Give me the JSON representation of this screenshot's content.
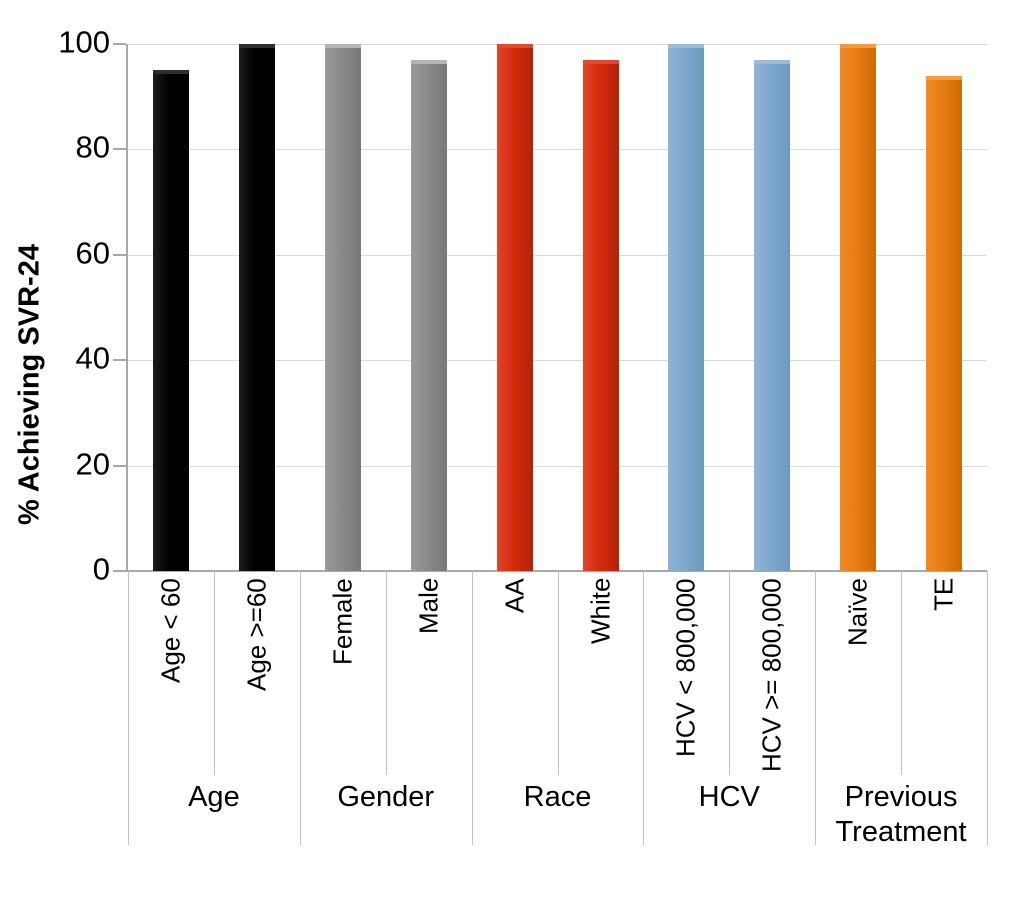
{
  "chart_data": {
    "type": "bar",
    "title": "",
    "ylabel": "% Achieving SVR-24",
    "xlabel": "",
    "ylim": [
      0,
      100
    ],
    "yticks": [
      0,
      20,
      40,
      60,
      80,
      100
    ],
    "grid": true,
    "legend": false,
    "groups": [
      {
        "label": "Age",
        "fill": "#000000",
        "fill_light": "#1c1c1c",
        "fill_dark": "#000000",
        "cap": "#2e2e2e",
        "bars": [
          {
            "category": "Age < 60",
            "value": 95
          },
          {
            "category": "Age >=60",
            "value": 100
          }
        ]
      },
      {
        "label": "Gender",
        "fill": "#8a8a8a",
        "fill_light": "#9a9a9a",
        "fill_dark": "#787878",
        "cap": "#b4b4b4",
        "bars": [
          {
            "category": "Female",
            "value": 100
          },
          {
            "category": "Male",
            "value": 97
          }
        ]
      },
      {
        "label": "Race",
        "fill": "#d62b0d",
        "fill_light": "#e2452a",
        "fill_dark": "#b22108",
        "cap": "#e4492f",
        "bars": [
          {
            "category": "AA",
            "value": 100
          },
          {
            "category": "White",
            "value": 97
          }
        ]
      },
      {
        "label": "HCV",
        "fill": "#7fa7cc",
        "fill_light": "#90b4d5",
        "fill_dark": "#6d99c0",
        "cap": "#9cbdda",
        "bars": [
          {
            "category": "HCV < 800,000",
            "value": 100
          },
          {
            "category": "HCV >= 800,000",
            "value": 97
          }
        ]
      },
      {
        "label": "Previous Treatment",
        "fill": "#e87c13",
        "fill_light": "#f08a28",
        "fill_dark": "#cd6a05",
        "cap": "#f09a42",
        "bars": [
          {
            "category": "Naïve",
            "value": 100
          },
          {
            "category": "TE",
            "value": 94
          }
        ]
      }
    ],
    "colors": {
      "background": "#ffffff",
      "gridline": "#d9d9d9",
      "axis": "#a9a9a9",
      "separator": "#c2c2c2",
      "text": "#000000"
    }
  }
}
